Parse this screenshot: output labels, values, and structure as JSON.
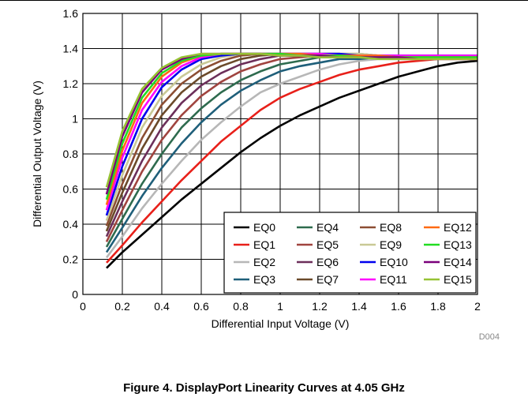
{
  "caption": "Figure 4. DisplayPort Linearity Curves at 4.05 GHz",
  "figure_code": "D004",
  "chart_data": {
    "type": "line",
    "xlabel": "Differential Input Voltage (V)",
    "ylabel": "Differential Output Voltage (V)",
    "xlim": [
      0,
      2
    ],
    "ylim": [
      0,
      1.6
    ],
    "xticks": [
      0,
      0.2,
      0.4,
      0.6,
      0.8,
      1,
      1.2,
      1.4,
      1.6,
      1.8,
      2
    ],
    "xtick_labels": [
      "0",
      "0.2",
      "0.4",
      "0.6",
      "0.8",
      "1",
      "1.2",
      "1.4",
      "1.6",
      "1.8",
      "2"
    ],
    "yticks": [
      0,
      0.2,
      0.4,
      0.6,
      0.8,
      1,
      1.2,
      1.4,
      1.6
    ],
    "ytick_labels": [
      "0",
      "0.2",
      "0.4",
      "0.6",
      "0.8",
      "1",
      "1.2",
      "1.4",
      "1.6"
    ],
    "grid": true,
    "legend_position": "bottom-right",
    "legend_columns": 4,
    "x": [
      0.12,
      0.2,
      0.3,
      0.4,
      0.5,
      0.6,
      0.7,
      0.8,
      0.9,
      1.0,
      1.1,
      1.2,
      1.3,
      1.4,
      1.5,
      1.6,
      1.7,
      1.8,
      1.9,
      2.0
    ],
    "series": [
      {
        "name": "EQ0",
        "color": "#000000",
        "values": [
          0.15,
          0.24,
          0.34,
          0.44,
          0.54,
          0.63,
          0.72,
          0.81,
          0.89,
          0.96,
          1.02,
          1.07,
          1.12,
          1.16,
          1.2,
          1.24,
          1.27,
          1.3,
          1.32,
          1.33
        ]
      },
      {
        "name": "EQ1",
        "color": "#e8201a",
        "values": [
          0.18,
          0.28,
          0.41,
          0.53,
          0.65,
          0.76,
          0.87,
          0.96,
          1.05,
          1.12,
          1.17,
          1.21,
          1.25,
          1.28,
          1.3,
          1.32,
          1.33,
          1.34,
          1.34,
          1.34
        ]
      },
      {
        "name": "EQ2",
        "color": "#b7b7b7",
        "values": [
          0.21,
          0.33,
          0.49,
          0.63,
          0.76,
          0.88,
          0.98,
          1.07,
          1.15,
          1.2,
          1.24,
          1.28,
          1.31,
          1.33,
          1.34,
          1.34,
          1.34,
          1.34,
          1.34,
          1.34
        ]
      },
      {
        "name": "EQ3",
        "color": "#1f5f7a",
        "values": [
          0.24,
          0.38,
          0.56,
          0.72,
          0.86,
          0.98,
          1.08,
          1.16,
          1.22,
          1.27,
          1.3,
          1.32,
          1.34,
          1.34,
          1.35,
          1.35,
          1.35,
          1.35,
          1.35,
          1.35
        ]
      },
      {
        "name": "EQ4",
        "color": "#2e6b4e",
        "values": [
          0.27,
          0.43,
          0.63,
          0.8,
          0.95,
          1.06,
          1.15,
          1.22,
          1.27,
          1.31,
          1.33,
          1.35,
          1.35,
          1.35,
          1.35,
          1.35,
          1.35,
          1.35,
          1.35,
          1.35
        ]
      },
      {
        "name": "EQ5",
        "color": "#a0443f",
        "values": [
          0.3,
          0.48,
          0.7,
          0.88,
          1.02,
          1.13,
          1.21,
          1.27,
          1.31,
          1.34,
          1.35,
          1.36,
          1.36,
          1.36,
          1.36,
          1.36,
          1.36,
          1.35,
          1.35,
          1.35
        ]
      },
      {
        "name": "EQ6",
        "color": "#6c2f5a",
        "values": [
          0.33,
          0.53,
          0.76,
          0.95,
          1.09,
          1.19,
          1.26,
          1.31,
          1.34,
          1.36,
          1.36,
          1.36,
          1.36,
          1.36,
          1.36,
          1.36,
          1.36,
          1.36,
          1.36,
          1.36
        ]
      },
      {
        "name": "EQ7",
        "color": "#6b4a2a",
        "values": [
          0.36,
          0.58,
          0.83,
          1.02,
          1.15,
          1.24,
          1.3,
          1.34,
          1.36,
          1.37,
          1.37,
          1.37,
          1.37,
          1.36,
          1.36,
          1.36,
          1.36,
          1.36,
          1.36,
          1.36
        ]
      },
      {
        "name": "EQ8",
        "color": "#8c4e33",
        "values": [
          0.39,
          0.63,
          0.89,
          1.08,
          1.2,
          1.28,
          1.33,
          1.36,
          1.37,
          1.37,
          1.37,
          1.37,
          1.37,
          1.37,
          1.36,
          1.36,
          1.36,
          1.36,
          1.36,
          1.36
        ]
      },
      {
        "name": "EQ9",
        "color": "#c9c996",
        "values": [
          0.42,
          0.68,
          0.95,
          1.13,
          1.24,
          1.31,
          1.35,
          1.37,
          1.37,
          1.37,
          1.37,
          1.37,
          1.37,
          1.37,
          1.36,
          1.36,
          1.36,
          1.36,
          1.36,
          1.36
        ]
      },
      {
        "name": "EQ10",
        "color": "#0000ee",
        "values": [
          0.45,
          0.73,
          1.0,
          1.18,
          1.28,
          1.34,
          1.36,
          1.37,
          1.37,
          1.37,
          1.37,
          1.37,
          1.37,
          1.36,
          1.36,
          1.36,
          1.36,
          1.36,
          1.36,
          1.36
        ]
      },
      {
        "name": "EQ11",
        "color": "#ff00ff",
        "values": [
          0.48,
          0.78,
          1.05,
          1.21,
          1.3,
          1.35,
          1.37,
          1.37,
          1.37,
          1.37,
          1.37,
          1.37,
          1.36,
          1.36,
          1.36,
          1.36,
          1.36,
          1.36,
          1.36,
          1.36
        ]
      },
      {
        "name": "EQ12",
        "color": "#ff6a13",
        "values": [
          0.51,
          0.82,
          1.09,
          1.24,
          1.32,
          1.36,
          1.37,
          1.37,
          1.37,
          1.37,
          1.37,
          1.36,
          1.36,
          1.36,
          1.36,
          1.35,
          1.35,
          1.35,
          1.35,
          1.35
        ]
      },
      {
        "name": "EQ13",
        "color": "#22dd22",
        "values": [
          0.54,
          0.86,
          1.12,
          1.26,
          1.33,
          1.36,
          1.37,
          1.37,
          1.37,
          1.37,
          1.36,
          1.36,
          1.36,
          1.35,
          1.35,
          1.35,
          1.35,
          1.35,
          1.35,
          1.35
        ]
      },
      {
        "name": "EQ14",
        "color": "#7a007a",
        "values": [
          0.57,
          0.9,
          1.15,
          1.28,
          1.34,
          1.37,
          1.37,
          1.37,
          1.37,
          1.36,
          1.36,
          1.36,
          1.35,
          1.35,
          1.35,
          1.35,
          1.34,
          1.34,
          1.34,
          1.34
        ]
      },
      {
        "name": "EQ15",
        "color": "#96c234",
        "values": [
          0.61,
          0.93,
          1.17,
          1.29,
          1.35,
          1.37,
          1.37,
          1.37,
          1.37,
          1.36,
          1.36,
          1.35,
          1.35,
          1.35,
          1.34,
          1.34,
          1.34,
          1.34,
          1.34,
          1.34
        ]
      }
    ]
  }
}
